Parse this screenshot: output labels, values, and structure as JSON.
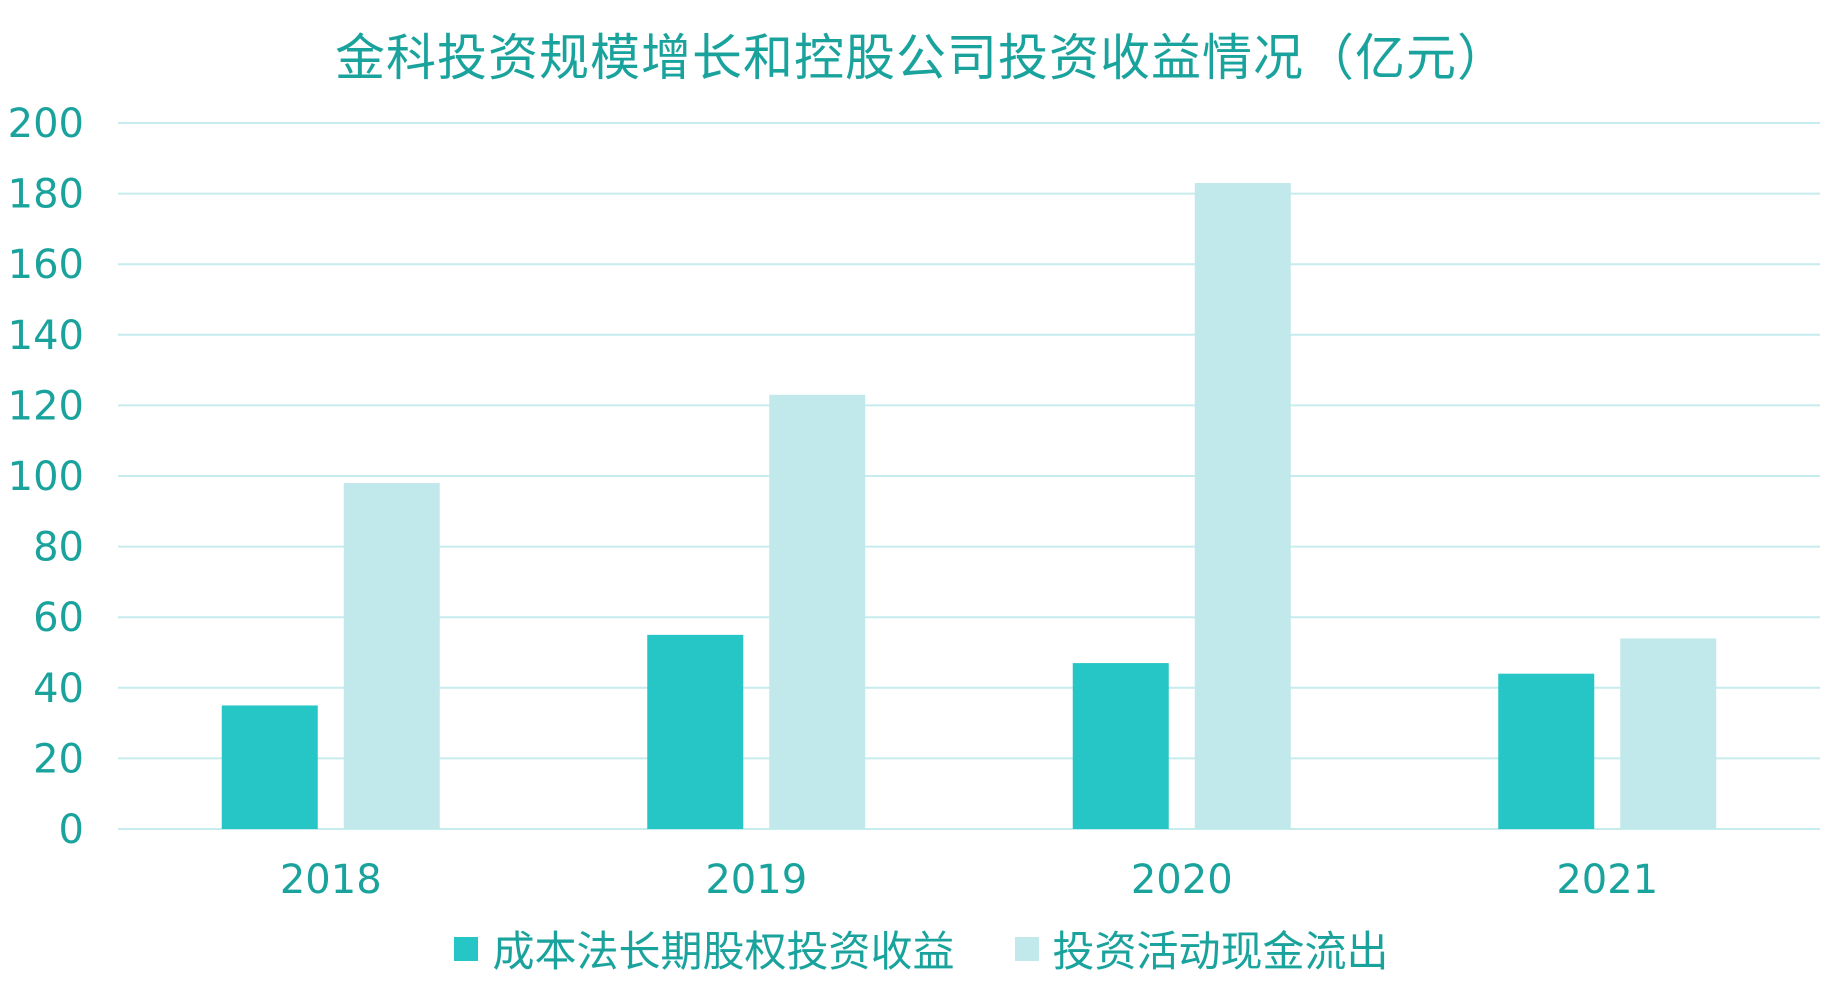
{
  "chart_data": {
    "type": "bar",
    "title": "金科投资规模增长和控股公司投资收益情况（亿元）",
    "categories": [
      "2018",
      "2019",
      "2020",
      "2021"
    ],
    "series": [
      {
        "name": "成本法长期股权投资收益",
        "values": [
          35,
          55,
          47,
          44
        ],
        "color": "#26c6c6"
      },
      {
        "name": "投资活动现金流出",
        "values": [
          98,
          123,
          183,
          54
        ],
        "color": "#c1e9ec"
      }
    ],
    "ylim": [
      0,
      200
    ],
    "yticks": [
      "0",
      "20",
      "40",
      "60",
      "80",
      "100",
      "120",
      "140",
      "160",
      "180",
      "200"
    ],
    "grid": true,
    "legend_position": "bottom",
    "colors": {
      "text": "#1aa39d",
      "grid": "#c6ecee"
    }
  }
}
